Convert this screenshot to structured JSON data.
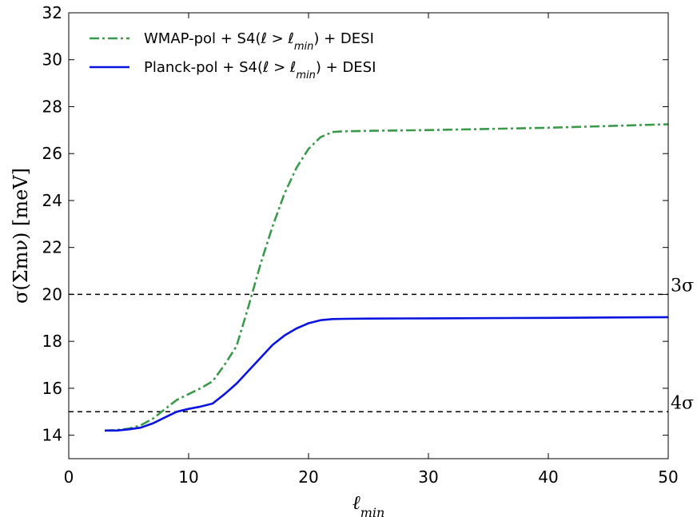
{
  "chart_data": {
    "type": "line",
    "xlabel": "ℓ",
    "xlabel_sub": "min",
    "ylabel": "σ(Σmν) [meV]",
    "xlim": [
      0,
      50
    ],
    "ylim": [
      13,
      32
    ],
    "xticks": [
      0,
      10,
      20,
      30,
      40,
      50
    ],
    "yticks": [
      14,
      16,
      18,
      20,
      22,
      24,
      26,
      28,
      30,
      32
    ],
    "grid": false,
    "legend_position": "top-left",
    "series": [
      {
        "name": "WMAP-pol + S4(ℓ > ℓmin) + DESI",
        "legend_parts": [
          "WMAP-pol + S4(ℓ > ℓ",
          "min",
          ") + DESI"
        ],
        "color": "#3a9a4a",
        "style": "dashdot",
        "x": [
          3,
          4,
          5,
          6,
          7,
          8,
          9,
          10,
          11,
          12,
          13,
          14,
          15,
          16,
          17,
          18,
          19,
          20,
          21,
          22,
          23,
          25,
          30,
          40,
          50
        ],
        "y": [
          14.2,
          14.22,
          14.28,
          14.42,
          14.7,
          15.1,
          15.5,
          15.75,
          16.0,
          16.3,
          17.0,
          17.8,
          19.5,
          21.3,
          22.9,
          24.3,
          25.4,
          26.2,
          26.7,
          26.92,
          26.95,
          26.97,
          27.0,
          27.1,
          27.25
        ]
      },
      {
        "name": "Planck-pol + S4(ℓ > ℓmin) + DESI",
        "legend_parts": [
          "Planck-pol + S4(ℓ > ℓ",
          "min",
          ") + DESI"
        ],
        "color": "#0a14e0",
        "style": "solid",
        "x": [
          3,
          4,
          5,
          6,
          7,
          8,
          9,
          10,
          11,
          12,
          13,
          14,
          15,
          16,
          17,
          18,
          19,
          20,
          21,
          22,
          23,
          25,
          30,
          40,
          50
        ],
        "y": [
          14.2,
          14.2,
          14.25,
          14.32,
          14.5,
          14.75,
          15.0,
          15.12,
          15.22,
          15.35,
          15.75,
          16.2,
          16.75,
          17.3,
          17.85,
          18.25,
          18.55,
          18.77,
          18.9,
          18.95,
          18.96,
          18.97,
          18.98,
          19.0,
          19.03
        ]
      }
    ],
    "reference_lines": [
      {
        "y": 20,
        "label": "3σ",
        "style": "dashed",
        "color": "#000000"
      },
      {
        "y": 15,
        "label": "4σ",
        "style": "dashed",
        "color": "#000000"
      }
    ]
  }
}
